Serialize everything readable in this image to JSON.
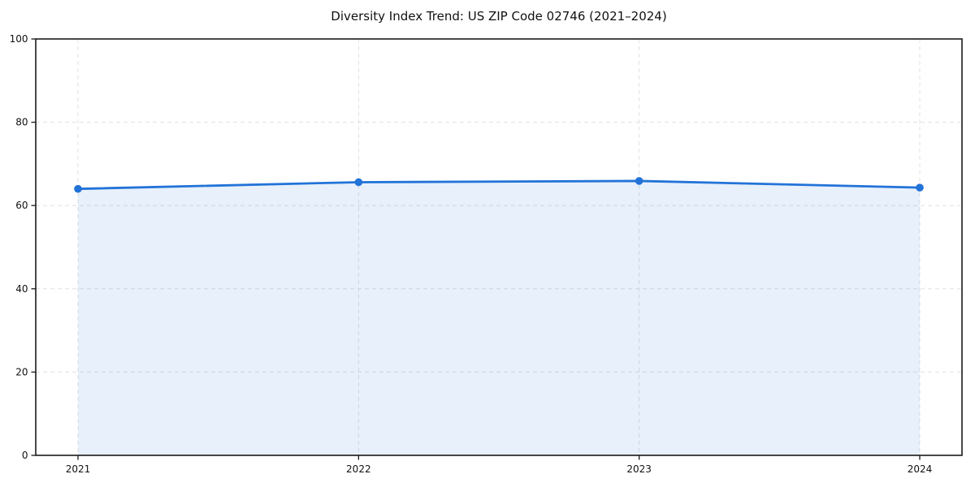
{
  "chart_data": {
    "type": "area",
    "title": "Diversity Index Trend: US ZIP Code 02746 (2021–2024)",
    "categories": [
      "2021",
      "2022",
      "2023",
      "2024"
    ],
    "series": [
      {
        "name": "Diversity Index",
        "values": [
          64.0,
          65.6,
          65.9,
          64.3
        ]
      }
    ],
    "xlabel": "",
    "ylabel": "",
    "ylim": [
      0,
      100
    ],
    "yticks": [
      0,
      20,
      40,
      60,
      80,
      100
    ],
    "grid": {
      "visible": true,
      "style": "dashed",
      "horizontal_at": [
        20,
        40,
        60,
        80
      ],
      "vertical_at_each_category": true
    },
    "legend": "none",
    "marker_shape": "circle",
    "colors": {
      "line": "#2273d8",
      "marker": "#2273d8",
      "area_fill": "rgba(34,115,216,0.11)",
      "grid": "#dcdcdc",
      "spine": "#1a1a1a",
      "tick_text": "#111111",
      "background": "#ffffff"
    }
  }
}
